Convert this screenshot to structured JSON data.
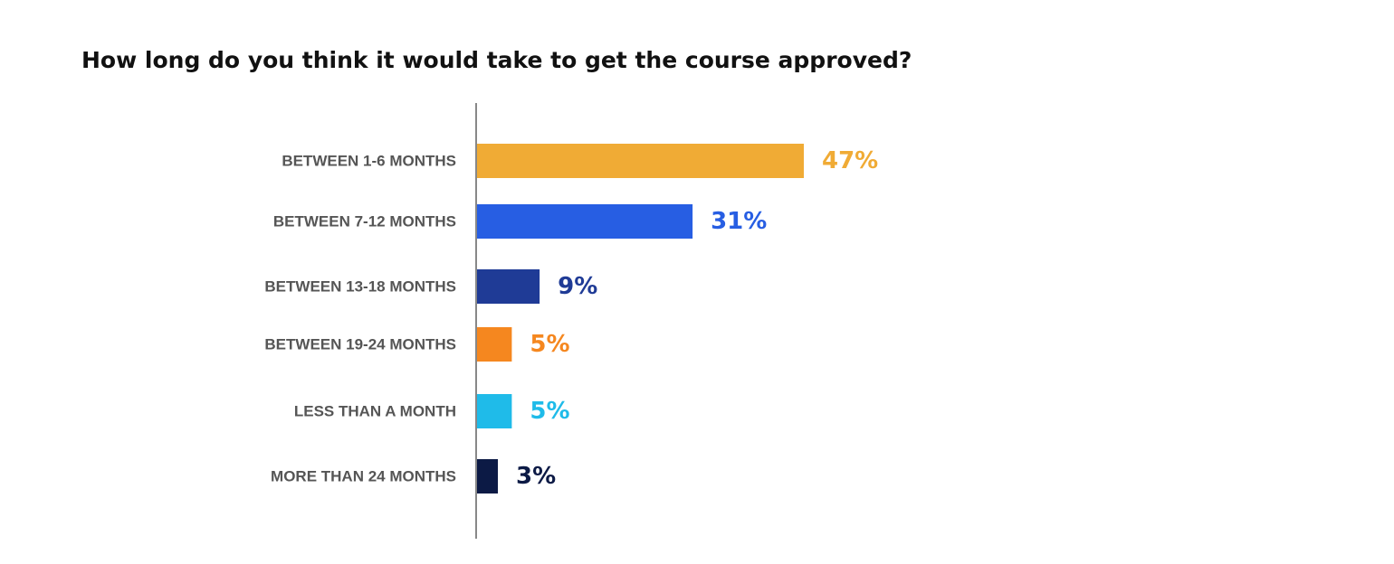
{
  "chart_data": {
    "type": "bar",
    "orientation": "horizontal",
    "title": "How long do you think it would take to get the course approved?",
    "xlabel": "",
    "ylabel": "",
    "grid": false,
    "xlim": [
      0,
      100
    ],
    "categories": [
      "BETWEEN 1-6 MONTHS",
      "BETWEEN 7-12 MONTHS",
      "BETWEEN 13-18 MONTHS",
      "BETWEEN 19-24 MONTHS",
      "LESS THAN A MONTH",
      "MORE THAN 24 MONTHS"
    ],
    "values": [
      47,
      31,
      9,
      5,
      5,
      3
    ],
    "value_labels": [
      "47%",
      "31%",
      "9%",
      "5%",
      "5%",
      "3%"
    ],
    "colors": [
      "#f0ab35",
      "#275ee3",
      "#1f3b96",
      "#f5871f",
      "#1fbbe9",
      "#0c1a45"
    ]
  }
}
